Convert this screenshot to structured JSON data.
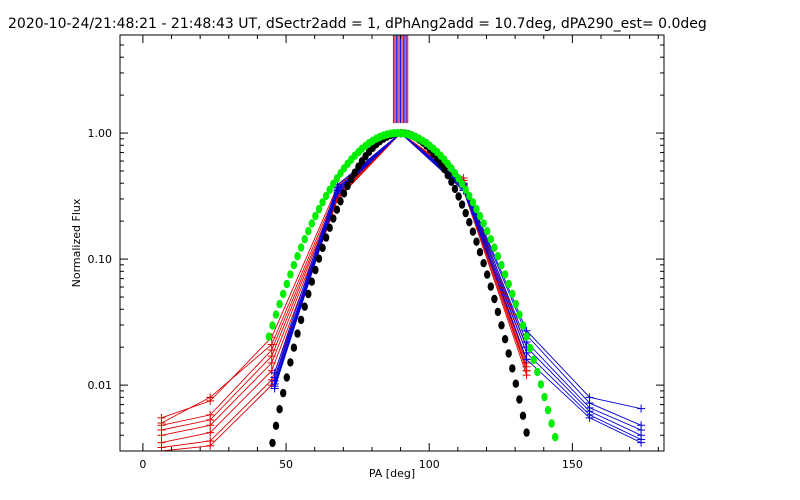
{
  "chart_data": {
    "type": "line",
    "title": "2020-10-24/21:48:21 - 21:48:43 UT, dSectr2add = 1, dPhAng2add = 10.7deg, dPA290_est=  0.0deg",
    "xlabel": "PA [deg]",
    "ylabel": "Normalized Flux",
    "xlim": [
      -8,
      182
    ],
    "ylim": [
      0.003,
      6.0
    ],
    "yscale": "log",
    "x_ticks": [
      0,
      50,
      100,
      150
    ],
    "x_tick_labels": [
      "0",
      "50",
      "100",
      "150"
    ],
    "y_ticks": [
      0.01,
      0.1,
      1.0
    ],
    "y_tick_labels": [
      "0.01",
      "0.10",
      "1.00"
    ],
    "colors": {
      "red": "#e00000",
      "blue": "#0000dd",
      "black": "#000000",
      "green": "#00ee00"
    },
    "vertical_lines": {
      "x": [
        87.5,
        88.0,
        88.5,
        89.0,
        89.5,
        90.0,
        90.5,
        91.0,
        91.5,
        92.0,
        92.5
      ],
      "colors": [
        "#e00000",
        "#b00040",
        "#0000dd",
        "#8000a0",
        "#e00000",
        "#0000dd",
        "#e00000",
        "#b00040",
        "#0000dd",
        "#8000a0",
        "#e00000"
      ],
      "y_bottom": 1.2
    },
    "series": [
      {
        "name": "red-1",
        "color": "#e00000",
        "x": [
          6.5,
          23.5,
          45,
          68,
          90,
          112,
          134
        ],
        "y": [
          0.0055,
          0.0075,
          0.024,
          0.38,
          1.0,
          0.44,
          0.013
        ]
      },
      {
        "name": "red-2",
        "color": "#e00000",
        "x": [
          6.5,
          23.5,
          45,
          68,
          90,
          112,
          134
        ],
        "y": [
          0.005,
          0.008,
          0.021,
          0.36,
          1.0,
          0.42,
          0.02
        ]
      },
      {
        "name": "red-3",
        "color": "#e00000",
        "x": [
          6.5,
          23.5,
          45,
          68,
          90,
          112,
          134
        ],
        "y": [
          0.0048,
          0.0058,
          0.019,
          0.34,
          1.0,
          0.4,
          0.018
        ]
      },
      {
        "name": "red-4",
        "color": "#e00000",
        "x": [
          6.5,
          23.5,
          45,
          68,
          90,
          112,
          134
        ],
        "y": [
          0.0044,
          0.0053,
          0.017,
          0.33,
          1.0,
          0.39,
          0.016
        ]
      },
      {
        "name": "red-5",
        "color": "#e00000",
        "x": [
          6.5,
          23.5,
          45,
          68,
          90,
          112,
          134
        ],
        "y": [
          0.004,
          0.0048,
          0.015,
          0.32,
          1.0,
          0.38,
          0.015
        ]
      },
      {
        "name": "red-6",
        "color": "#e00000",
        "x": [
          6.5,
          23.5,
          45,
          68,
          90,
          112,
          134
        ],
        "y": [
          0.0035,
          0.0042,
          0.013,
          0.31,
          1.0,
          0.37,
          0.014
        ]
      },
      {
        "name": "red-7",
        "color": "#e00000",
        "x": [
          6.5,
          23.5,
          45,
          68,
          90,
          112,
          134
        ],
        "y": [
          0.0032,
          0.0036,
          0.011,
          0.3,
          1.0,
          0.36,
          0.013
        ]
      },
      {
        "name": "red-8",
        "color": "#e00000",
        "x": [
          6.5,
          23.5,
          45,
          68,
          90,
          112,
          134
        ],
        "y": [
          0.003,
          0.0033,
          0.01,
          0.3,
          1.0,
          0.35,
          0.012
        ]
      },
      {
        "name": "blue-1",
        "color": "#0000dd",
        "x": [
          46,
          68,
          90,
          112,
          134,
          156,
          174
        ],
        "y": [
          0.0125,
          0.39,
          1.0,
          0.4,
          0.027,
          0.008,
          0.0065
        ]
      },
      {
        "name": "blue-2",
        "color": "#0000dd",
        "x": [
          46,
          68,
          90,
          112,
          134,
          156,
          174
        ],
        "y": [
          0.0115,
          0.37,
          1.0,
          0.39,
          0.025,
          0.0072,
          0.0048
        ]
      },
      {
        "name": "blue-3",
        "color": "#0000dd",
        "x": [
          46,
          68,
          90,
          112,
          134,
          156,
          174
        ],
        "y": [
          0.0108,
          0.36,
          1.0,
          0.38,
          0.022,
          0.0066,
          0.0044
        ]
      },
      {
        "name": "blue-4",
        "color": "#0000dd",
        "x": [
          46,
          68,
          90,
          112,
          134,
          156,
          174
        ],
        "y": [
          0.0102,
          0.35,
          1.0,
          0.37,
          0.02,
          0.0062,
          0.004
        ]
      },
      {
        "name": "blue-5",
        "color": "#0000dd",
        "x": [
          46,
          68,
          90,
          112,
          134,
          156,
          174
        ],
        "y": [
          0.0098,
          0.34,
          1.0,
          0.36,
          0.018,
          0.0058,
          0.0037
        ]
      },
      {
        "name": "blue-6",
        "color": "#0000dd",
        "x": [
          46,
          68,
          90,
          112,
          134,
          156,
          174
        ],
        "y": [
          0.0094,
          0.33,
          1.0,
          0.35,
          0.016,
          0.0055,
          0.0035
        ]
      }
    ],
    "model_curves": [
      {
        "name": "black-model",
        "color": "#000000",
        "center": 90,
        "sigma": 13.3,
        "x_start": 34,
        "x_end": 134,
        "step": 1.25
      },
      {
        "name": "green-model",
        "color": "#00ee00",
        "center": 89,
        "sigma": 16.5,
        "x_start": 44,
        "x_end": 144,
        "step": 1.25
      }
    ]
  }
}
